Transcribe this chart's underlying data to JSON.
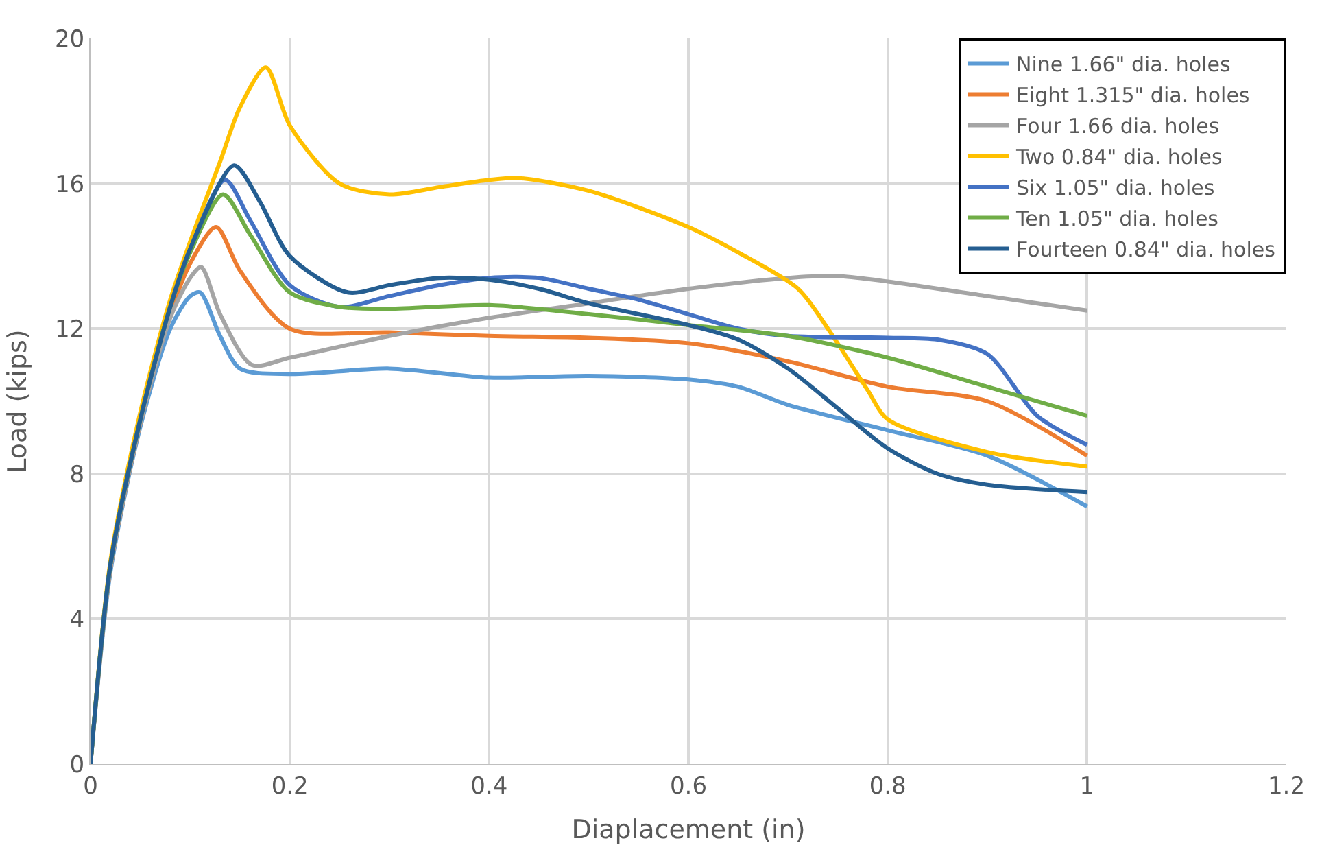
{
  "chart_data": {
    "type": "line",
    "xlabel": "Diaplacement (in)",
    "ylabel": "Load (kips)",
    "xlim": [
      0,
      1.2
    ],
    "xticks": [
      0,
      0.2,
      0.4,
      0.6,
      0.8,
      1,
      1.2
    ],
    "ylim": [
      0,
      20
    ],
    "yticks": [
      0,
      4,
      8,
      12,
      16,
      20
    ],
    "grid": true,
    "legend": "top right",
    "marker": "none",
    "line_style": "solid",
    "series": [
      {
        "name": "Nine 1.66\" dia. holes",
        "color": "#5b9bd5",
        "x": [
          0,
          0.02,
          0.05,
          0.08,
          0.1,
          0.11,
          0.13,
          0.15,
          0.2,
          0.3,
          0.4,
          0.5,
          0.6,
          0.65,
          0.7,
          0.8,
          0.9,
          1.0
        ],
        "values": [
          0,
          5.3,
          9.3,
          12,
          12.9,
          13,
          11.8,
          10.9,
          10.75,
          10.9,
          10.65,
          10.7,
          10.6,
          10.4,
          9.9,
          9.2,
          8.5,
          7.1
        ]
      },
      {
        "name": "Eight 1.315\" dia. holes",
        "color": "#ed7d31",
        "x": [
          0,
          0.02,
          0.05,
          0.08,
          0.1,
          0.126,
          0.15,
          0.2,
          0.3,
          0.4,
          0.5,
          0.6,
          0.7,
          0.8,
          0.9,
          1.0
        ],
        "values": [
          0,
          5.4,
          9.4,
          12.4,
          13.8,
          14.8,
          13.6,
          12,
          11.9,
          11.8,
          11.75,
          11.6,
          11.1,
          10.4,
          10,
          8.5
        ]
      },
      {
        "name": "Four 1.66 dia. holes",
        "color": "#a5a5a5",
        "x": [
          0,
          0.02,
          0.05,
          0.08,
          0.1,
          0.111,
          0.13,
          0.162,
          0.2,
          0.3,
          0.4,
          0.5,
          0.6,
          0.7,
          0.75,
          0.8,
          0.9,
          1.0
        ],
        "values": [
          0,
          5.4,
          9.4,
          12.3,
          13.4,
          13.7,
          12.4,
          11,
          11.2,
          11.8,
          12.3,
          12.7,
          13.1,
          13.4,
          13.45,
          13.3,
          12.9,
          12.5
        ]
      },
      {
        "name": "Two 0.84\" dia. holes",
        "color": "#ffc000",
        "x": [
          0,
          0.02,
          0.05,
          0.08,
          0.1,
          0.13,
          0.15,
          0.176,
          0.2,
          0.25,
          0.3,
          0.35,
          0.4,
          0.43,
          0.5,
          0.6,
          0.65,
          0.71,
          0.74,
          0.78,
          0.8,
          0.9,
          1.0
        ],
        "values": [
          0,
          5.6,
          9.7,
          12.8,
          14.4,
          16.6,
          18.1,
          19.2,
          17.6,
          16,
          15.7,
          15.9,
          16.1,
          16.15,
          15.8,
          14.8,
          14.1,
          13.1,
          12,
          10.3,
          9.5,
          8.6,
          8.2
        ]
      },
      {
        "name": "Six 1.05\" dia. holes",
        "color": "#4472c4",
        "x": [
          0,
          0.02,
          0.05,
          0.08,
          0.1,
          0.135,
          0.16,
          0.2,
          0.25,
          0.3,
          0.35,
          0.4,
          0.45,
          0.5,
          0.55,
          0.6,
          0.65,
          0.7,
          0.8,
          0.85,
          0.9,
          0.95,
          1.0
        ],
        "values": [
          0,
          5.5,
          9.5,
          12.6,
          14.2,
          16.1,
          15,
          13.2,
          12.6,
          12.9,
          13.2,
          13.4,
          13.4,
          13.1,
          12.8,
          12.4,
          12,
          11.8,
          11.75,
          11.7,
          11.3,
          9.6,
          8.8
        ]
      },
      {
        "name": "Ten 1.05\" dia. holes",
        "color": "#70ad47",
        "x": [
          0,
          0.02,
          0.05,
          0.08,
          0.1,
          0.133,
          0.16,
          0.2,
          0.25,
          0.3,
          0.4,
          0.5,
          0.6,
          0.7,
          0.8,
          0.9,
          1.0
        ],
        "values": [
          0,
          5.5,
          9.5,
          12.6,
          14.1,
          15.7,
          14.6,
          13,
          12.6,
          12.55,
          12.65,
          12.4,
          12.1,
          11.8,
          11.2,
          10.4,
          9.6
        ]
      },
      {
        "name": "Fourteen 0.84\" dia. holes",
        "color": "#255e91",
        "x": [
          0,
          0.02,
          0.05,
          0.08,
          0.1,
          0.144,
          0.17,
          0.2,
          0.258,
          0.3,
          0.35,
          0.4,
          0.45,
          0.5,
          0.6,
          0.65,
          0.7,
          0.75,
          0.8,
          0.85,
          0.9,
          1.0
        ],
        "values": [
          0,
          5.5,
          9.5,
          12.6,
          14.2,
          16.5,
          15.5,
          14,
          13,
          13.2,
          13.4,
          13.35,
          13.1,
          12.7,
          12.1,
          11.7,
          10.9,
          9.8,
          8.7,
          8,
          7.7,
          7.5
        ]
      }
    ]
  }
}
